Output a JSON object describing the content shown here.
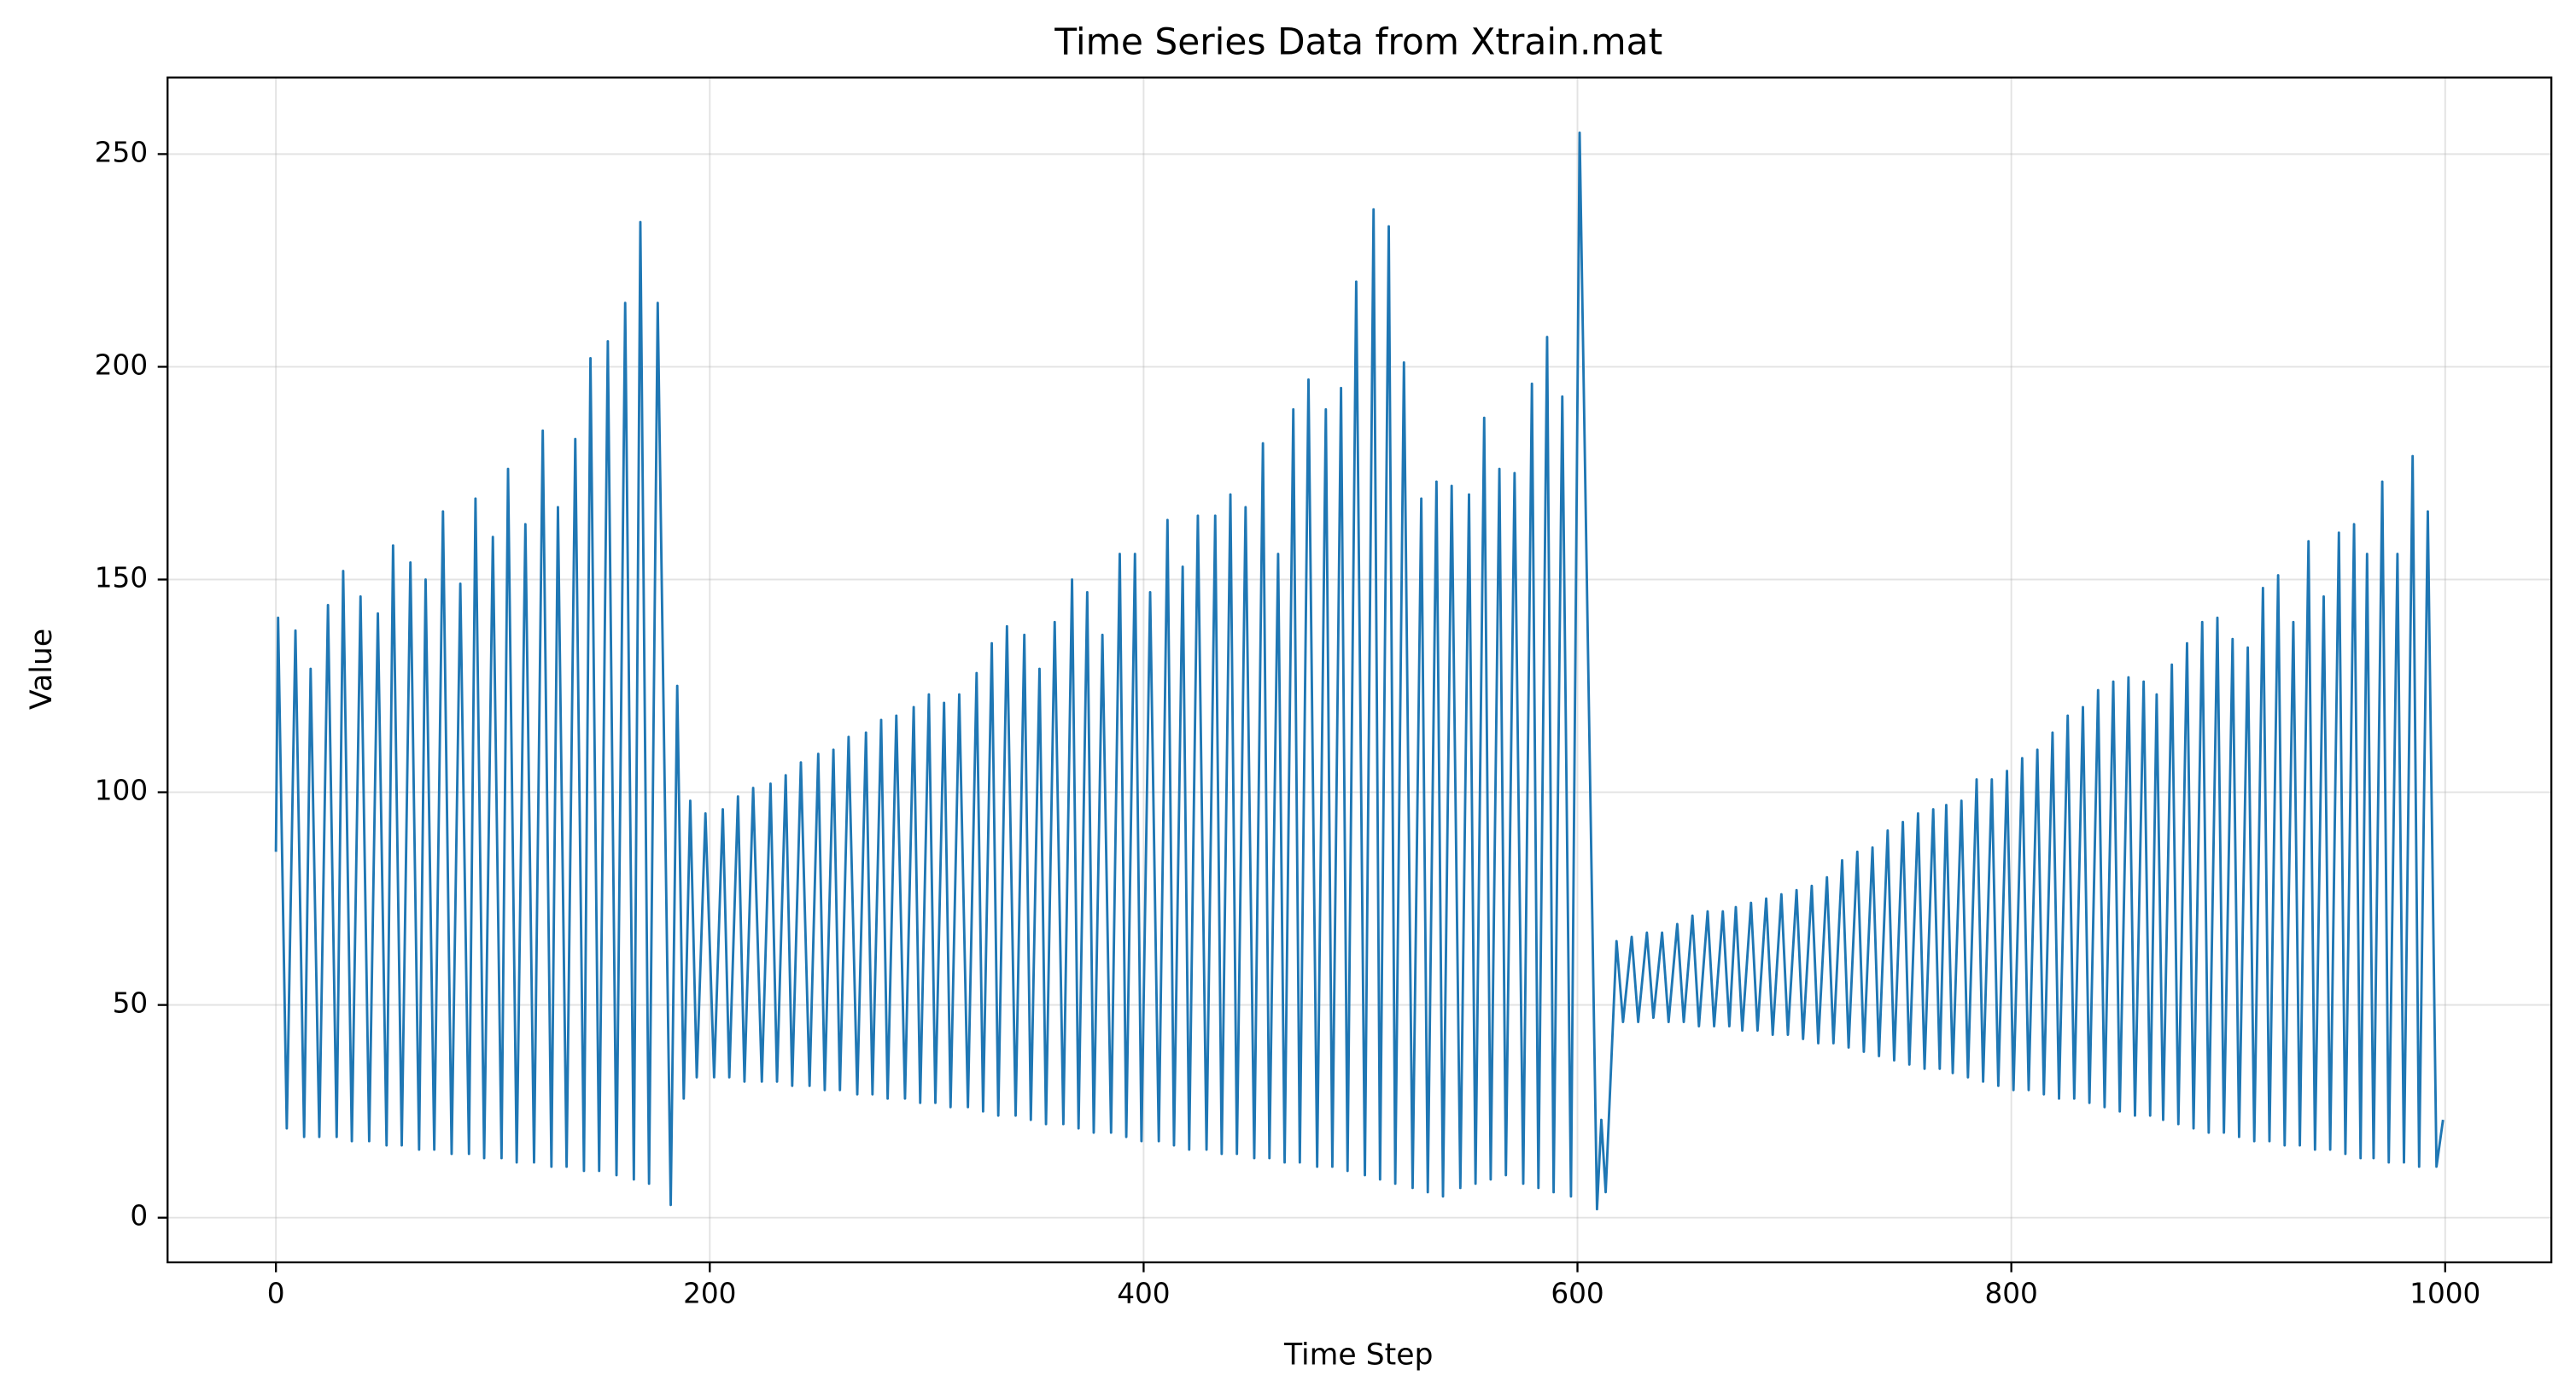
{
  "chart_data": {
    "type": "line",
    "title": "Time Series Data from Xtrain.mat",
    "x_label": "Time Step",
    "y_label": "Value",
    "color": "#1f77b4",
    "grid": true,
    "xlim": [
      -49.95,
      1048.95
    ],
    "ylim": [
      -10.5,
      268
    ],
    "xticks": [
      0,
      200,
      400,
      600,
      800,
      1000
    ],
    "yticks": [
      0,
      50,
      100,
      150,
      200,
      250
    ],
    "x": [
      0,
      1,
      5,
      9,
      13,
      16,
      20,
      24,
      28,
      31,
      35,
      39,
      43,
      47,
      51,
      54,
      58,
      62,
      66,
      69,
      73,
      77,
      81,
      85,
      89,
      92,
      96,
      100,
      104,
      107,
      111,
      115,
      119,
      123,
      127,
      130,
      134,
      138,
      142,
      145,
      149,
      153,
      157,
      161,
      165,
      168,
      172,
      176,
      182,
      185,
      188,
      191,
      194,
      198,
      202,
      206,
      209,
      213,
      216,
      220,
      224,
      228,
      231,
      235,
      238,
      242,
      246,
      250,
      253,
      257,
      260,
      264,
      268,
      272,
      275,
      279,
      282,
      286,
      290,
      294,
      297,
      301,
      304,
      308,
      311,
      315,
      319,
      323,
      326,
      330,
      333,
      337,
      341,
      345,
      348,
      352,
      355,
      359,
      363,
      367,
      370,
      374,
      377,
      381,
      385,
      389,
      392,
      396,
      399,
      403,
      407,
      411,
      414,
      418,
      421,
      425,
      429,
      433,
      436,
      440,
      443,
      447,
      451,
      455,
      458,
      462,
      465,
      469,
      472,
      476,
      480,
      484,
      487,
      491,
      494,
      498,
      502,
      506,
      509,
      513,
      516,
      520,
      524,
      528,
      531,
      535,
      538,
      542,
      546,
      550,
      553,
      557,
      560,
      564,
      567,
      571,
      575,
      579,
      582,
      586,
      589,
      593,
      597,
      601,
      609,
      611,
      613,
      618,
      621,
      625,
      628,
      632,
      635,
      639,
      642,
      646,
      649,
      653,
      656,
      660,
      663,
      667,
      670,
      673,
      676,
      680,
      683,
      687,
      690,
      694,
      697,
      701,
      704,
      708,
      711,
      715,
      718,
      722,
      725,
      729,
      732,
      736,
      739,
      743,
      746,
      750,
      753,
      757,
      760,
      764,
      767,
      770,
      773,
      777,
      780,
      784,
      787,
      791,
      794,
      798,
      801,
      805,
      808,
      812,
      815,
      819,
      822,
      826,
      829,
      833,
      836,
      840,
      843,
      847,
      850,
      854,
      857,
      861,
      864,
      867,
      870,
      874,
      877,
      881,
      884,
      888,
      891,
      895,
      898,
      902,
      905,
      909,
      912,
      916,
      919,
      923,
      926,
      930,
      933,
      937,
      940,
      944,
      947,
      951,
      954,
      958,
      961,
      964,
      967,
      971,
      974,
      978,
      981,
      985,
      988,
      992,
      996,
      999
    ],
    "values": [
      86,
      141,
      21,
      138,
      19,
      129,
      19,
      144,
      19,
      152,
      18,
      146,
      18,
      142,
      17,
      158,
      17,
      154,
      16,
      150,
      16,
      166,
      15,
      149,
      15,
      169,
      14,
      160,
      14,
      176,
      13,
      163,
      13,
      185,
      12,
      167,
      12,
      183,
      11,
      202,
      11,
      206,
      10,
      215,
      9,
      234,
      8,
      215,
      3,
      125,
      28,
      98,
      33,
      95,
      33,
      96,
      33,
      99,
      32,
      101,
      32,
      102,
      32,
      104,
      31,
      107,
      31,
      109,
      30,
      110,
      30,
      113,
      29,
      114,
      29,
      117,
      28,
      118,
      28,
      120,
      27,
      123,
      27,
      121,
      26,
      123,
      26,
      128,
      25,
      135,
      24,
      139,
      24,
      137,
      23,
      129,
      22,
      140,
      22,
      150,
      21,
      147,
      20,
      137,
      20,
      156,
      19,
      156,
      18,
      147,
      18,
      164,
      17,
      153,
      16,
      165,
      16,
      165,
      15,
      170,
      15,
      167,
      14,
      182,
      14,
      156,
      13,
      190,
      13,
      197,
      12,
      190,
      12,
      195,
      11,
      220,
      10,
      237,
      9,
      233,
      8,
      201,
      7,
      169,
      6,
      173,
      5,
      172,
      7,
      170,
      8,
      188,
      9,
      176,
      10,
      175,
      8,
      196,
      7,
      207,
      6,
      193,
      5,
      255,
      2,
      23,
      6,
      65,
      46,
      66,
      46,
      67,
      47,
      67,
      46,
      69,
      46,
      71,
      45,
      72,
      45,
      72,
      45,
      73,
      44,
      74,
      44,
      75,
      43,
      76,
      43,
      77,
      42,
      78,
      41,
      80,
      41,
      84,
      40,
      86,
      39,
      87,
      38,
      91,
      37,
      93,
      36,
      95,
      35,
      96,
      35,
      97,
      34,
      98,
      33,
      103,
      32,
      103,
      31,
      105,
      30,
      108,
      30,
      110,
      29,
      114,
      28,
      118,
      28,
      120,
      27,
      124,
      26,
      126,
      25,
      127,
      24,
      126,
      24,
      123,
      23,
      130,
      22,
      135,
      21,
      140,
      20,
      141,
      20,
      136,
      19,
      134,
      18,
      148,
      18,
      151,
      17,
      140,
      17,
      159,
      16,
      146,
      16,
      161,
      15,
      163,
      14,
      156,
      14,
      173,
      13,
      156,
      13,
      179,
      12,
      166,
      12,
      23
    ]
  }
}
